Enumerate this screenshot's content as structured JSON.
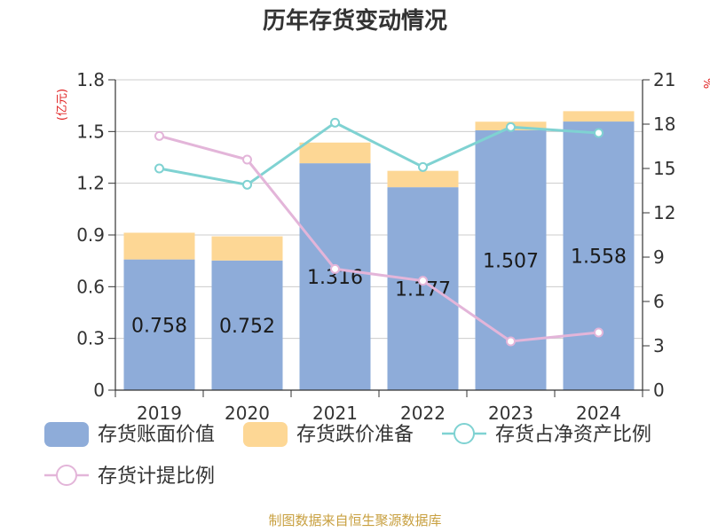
{
  "title": "历年存货变动情况",
  "source": "制图数据来自恒生聚源数据库",
  "chart_data": {
    "type": "bar",
    "categories": [
      "2019",
      "2020",
      "2021",
      "2022",
      "2023",
      "2024"
    ],
    "ylabel": "(亿元)",
    "ylim": [
      0,
      1.8
    ],
    "yticks": [
      "0",
      "0.3",
      "0.6",
      "0.9",
      "1.2",
      "1.5",
      "1.8"
    ],
    "y2lim": [
      0,
      21
    ],
    "y2ticks": [
      "0",
      "3",
      "6",
      "9",
      "12",
      "15",
      "18",
      "21"
    ],
    "y2label": "%",
    "stacked": true,
    "grid": true,
    "legend_position": "bottom",
    "series": [
      {
        "name": "存货账面价值",
        "type": "bar",
        "axis": "left",
        "color": "#8eacd9",
        "values": [
          0.758,
          0.752,
          1.316,
          1.177,
          1.507,
          1.558
        ],
        "labels": [
          "0.758",
          "0.752",
          "1.316",
          "1.177",
          "1.507",
          "1.558"
        ]
      },
      {
        "name": "存货跌价准备",
        "type": "bar",
        "axis": "left",
        "color": "#fdd795",
        "values": [
          0.155,
          0.14,
          0.12,
          0.095,
          0.05,
          0.06
        ]
      },
      {
        "name": "存货占净资产比例",
        "type": "line",
        "axis": "right",
        "color": "#7fd2d2",
        "values": [
          15.0,
          13.9,
          18.1,
          15.1,
          17.8,
          17.4
        ]
      },
      {
        "name": "存货计提比例",
        "type": "line",
        "axis": "right",
        "color": "#e3b5d9",
        "values": [
          17.2,
          15.6,
          8.2,
          7.4,
          3.3,
          3.9
        ]
      }
    ]
  }
}
